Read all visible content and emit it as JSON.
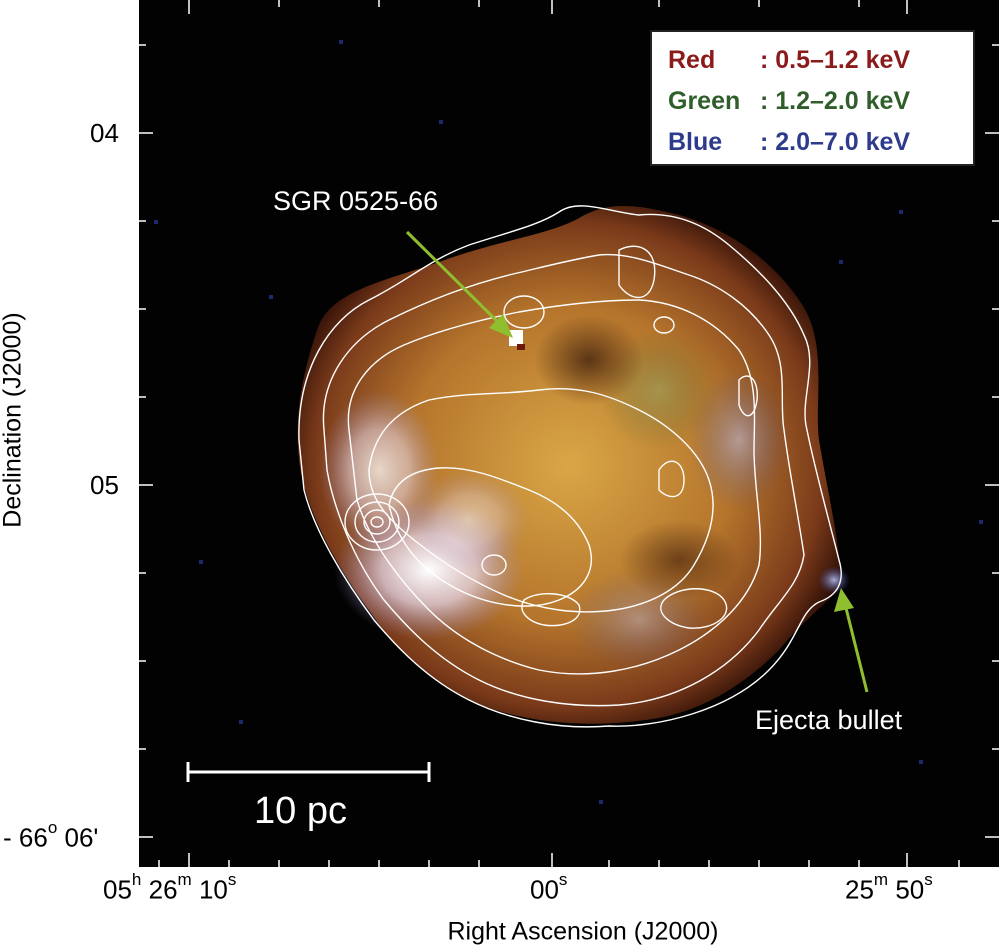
{
  "axes": {
    "ylabel": "Declination (J2000)",
    "xlabel": "Right Ascension (J2000)",
    "yticks": [
      {
        "value": "04",
        "prefix": ""
      },
      {
        "value": "05",
        "prefix": ""
      },
      {
        "value": "06'",
        "prefix": "- 66",
        "sup": "o"
      }
    ],
    "xticks": [
      {
        "h": "05",
        "hu": "h",
        "m": "26",
        "mu": "m",
        "s": "10",
        "su": "s"
      },
      {
        "s": "00",
        "su": "s"
      },
      {
        "m": "25",
        "mu": "m",
        "s": "50",
        "su": "s"
      }
    ]
  },
  "legend": [
    {
      "name": "Red",
      "range": ": 0.5–1.2 keV",
      "color": "#8b1a1a"
    },
    {
      "name": "Green",
      "range": ": 1.2–2.0 keV",
      "color": "#2f5e2a"
    },
    {
      "name": "Blue",
      "range": ": 2.0–7.0 keV",
      "color": "#2e3a8c"
    }
  ],
  "annotations": {
    "sgr": "SGR 0525-66",
    "bullet": "Ejecta bullet",
    "scale": "10 pc",
    "arrow_color": "#8fbf2f"
  }
}
